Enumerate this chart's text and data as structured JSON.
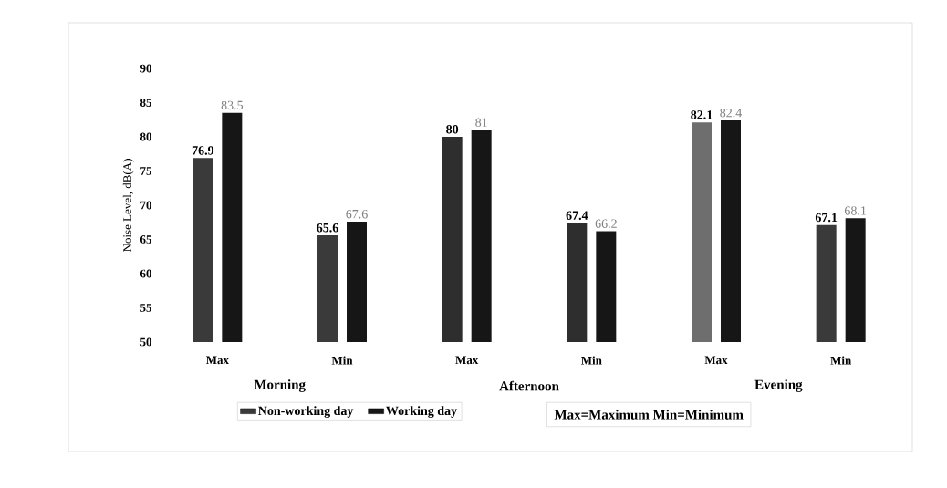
{
  "chart_data": {
    "type": "bar",
    "ylabel": "Noise Level, dB(A)",
    "categories": [
      "Max",
      "Min",
      "Max",
      "Min",
      "Max",
      "Min"
    ],
    "series": [
      {
        "name": "Non-working day",
        "color": "#3a3a3a",
        "colors": [
          "#3a3a3a",
          "#3a3a3a",
          "#2e2e2e",
          "#2e2e2e",
          "#6e6e6e",
          "#3a3a3a"
        ],
        "values": [
          76.9,
          65.6,
          80,
          67.4,
          82.1,
          67.1
        ]
      },
      {
        "name": "Working day",
        "color": "#161616",
        "values": [
          83.5,
          67.6,
          81,
          66.2,
          82.4,
          68.1
        ]
      }
    ],
    "ylim": [
      50,
      90
    ],
    "yticks": [
      50,
      55,
      60,
      65,
      70,
      75,
      80,
      85,
      90
    ],
    "data_labels": true,
    "legend": "bottom",
    "annotations": [
      "Morning",
      "Afternoon",
      "Evening",
      "Max=Maximum Min=Minimum"
    ]
  }
}
